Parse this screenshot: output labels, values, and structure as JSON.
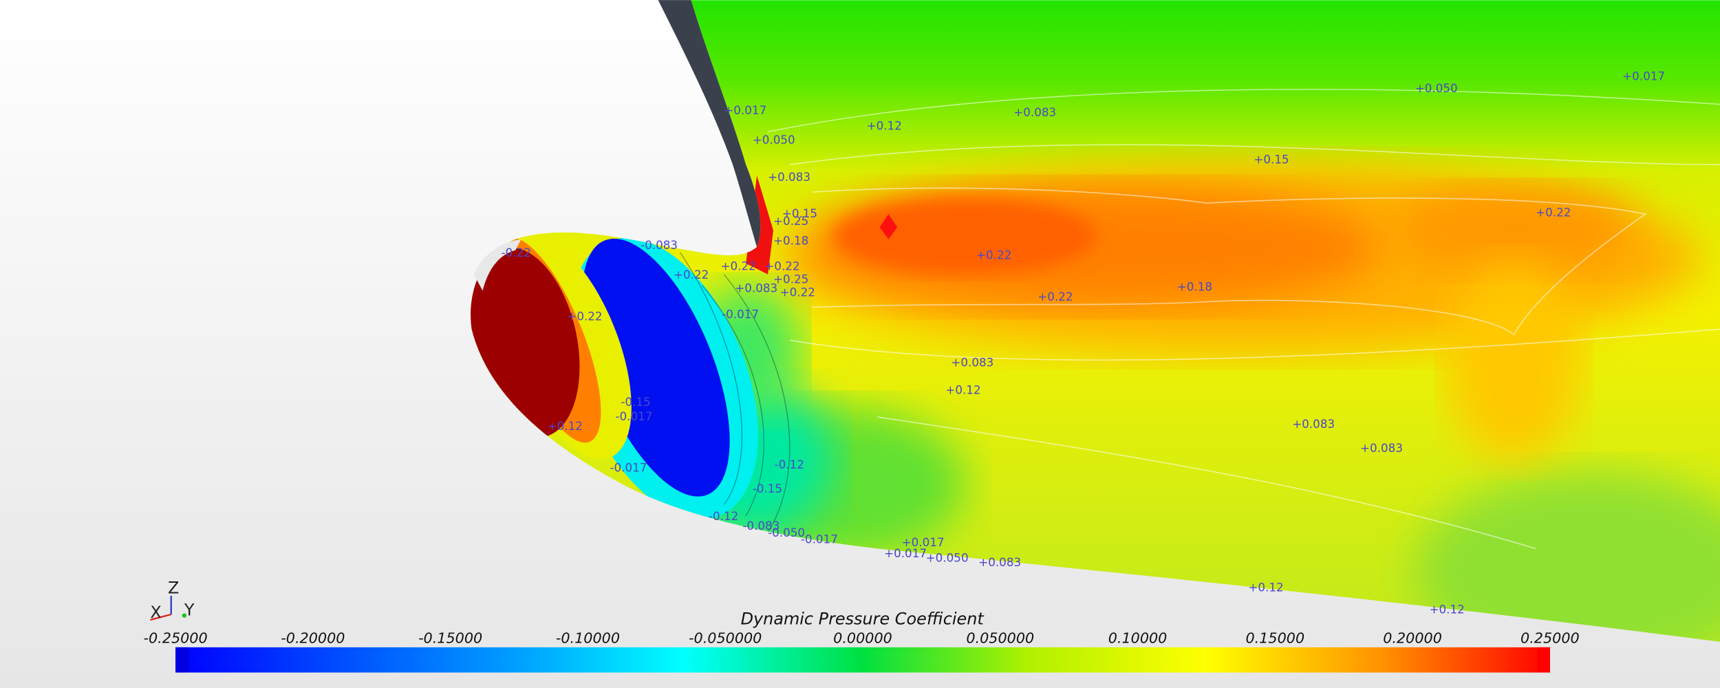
{
  "colorbar": {
    "title": "Dynamic Pressure Coefficient",
    "ticks": [
      "-0.25000",
      "-0.20000",
      "-0.15000",
      "-0.10000",
      "-0.050000",
      "0.00000",
      "0.050000",
      "0.10000",
      "0.15000",
      "0.20000",
      "0.25000"
    ]
  },
  "axes": {
    "x": "X",
    "y": "Y",
    "z": "Z"
  },
  "contour_labels": [
    "+0.017",
    "+0.050",
    "+0.12",
    "+0.083",
    "+0.050",
    "+0.017",
    "+0.083",
    "+0.15",
    "+0.15",
    "+0.25",
    "+0.22",
    "+0.18",
    "+0.22",
    "+0.22",
    "+0.22",
    "+0.25",
    "+0.083",
    "+0.22",
    "+0.22",
    "+0.18",
    "-0.017",
    "+0.083",
    "+0.12",
    "+0.083",
    "+0.083",
    "-0.083",
    "-0.22",
    "+0.22",
    "+0.22",
    "-0.15",
    "-0.017",
    "+0.12",
    "-0.12",
    "-0.15",
    "-0.12",
    "-0.083",
    "-0.050",
    "-0.017",
    "+0.017",
    "+0.017",
    "+0.050",
    "+0.083",
    "+0.12",
    "+0.12",
    "-0.017"
  ]
}
